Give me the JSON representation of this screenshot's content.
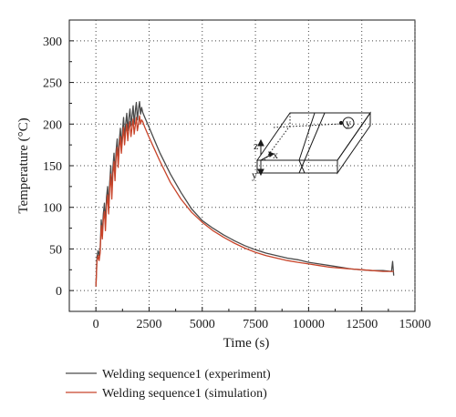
{
  "chart_data": {
    "type": "line",
    "xlabel": "Time (s)",
    "ylabel": "Temperature (°C)",
    "xlim": [
      -1250,
      15000
    ],
    "ylim": [
      -25,
      325
    ],
    "x_ticks": [
      0,
      2500,
      5000,
      7500,
      10000,
      12500,
      15000
    ],
    "x_tick_labels": [
      "0",
      "2500",
      "5000",
      "7500",
      "10000",
      "12500",
      "15000"
    ],
    "y_ticks": [
      0,
      50,
      100,
      150,
      200,
      250,
      300
    ],
    "y_tick_labels": [
      "0",
      "50",
      "100",
      "150",
      "200",
      "250",
      "300"
    ],
    "grid": true,
    "legend_position": "bottom-left, below plot",
    "series": [
      {
        "name": "Welding sequence1 (experiment)",
        "color": "#4a4a4a",
        "x": [
          0,
          50,
          100,
          150,
          200,
          250,
          300,
          350,
          400,
          450,
          500,
          550,
          600,
          650,
          700,
          750,
          800,
          850,
          900,
          950,
          1000,
          1050,
          1100,
          1150,
          1200,
          1250,
          1300,
          1350,
          1400,
          1450,
          1500,
          1550,
          1600,
          1650,
          1700,
          1750,
          1800,
          1850,
          1900,
          1950,
          2000,
          2050,
          2100,
          2150,
          2200,
          2300,
          2500,
          2750,
          3000,
          3500,
          4000,
          4500,
          5000,
          5500,
          6000,
          6500,
          7000,
          7500,
          8000,
          8500,
          9000,
          9500,
          10000,
          10500,
          11000,
          11500,
          12000,
          12500,
          13000,
          13500,
          13900,
          13950,
          14000
        ],
        "y": [
          5,
          40,
          48,
          42,
          50,
          85,
          70,
          92,
          105,
          80,
          112,
          125,
          100,
          130,
          150,
          118,
          148,
          165,
          140,
          168,
          182,
          155,
          180,
          195,
          172,
          192,
          208,
          182,
          200,
          213,
          192,
          207,
          218,
          198,
          210,
          222,
          200,
          215,
          226,
          205,
          218,
          227,
          212,
          220,
          214,
          208,
          196,
          181,
          166,
          140,
          118,
          98,
          84,
          75,
          67,
          60,
          54,
          49,
          45,
          42,
          39,
          37,
          34,
          32,
          30,
          28,
          26,
          25,
          24,
          24,
          23,
          35,
          18
        ]
      },
      {
        "name": "Welding sequence1 (simulation)",
        "color": "#c8442a",
        "x": [
          0,
          50,
          100,
          150,
          200,
          250,
          300,
          350,
          400,
          450,
          500,
          550,
          600,
          650,
          700,
          750,
          800,
          850,
          900,
          950,
          1000,
          1050,
          1100,
          1150,
          1200,
          1250,
          1300,
          1350,
          1400,
          1450,
          1500,
          1550,
          1600,
          1650,
          1700,
          1750,
          1800,
          1850,
          1900,
          1950,
          2000,
          2050,
          2100,
          2150,
          2200,
          2300,
          2500,
          2750,
          3000,
          3500,
          4000,
          4500,
          5000,
          5500,
          6000,
          6500,
          7000,
          7500,
          8000,
          8500,
          9000,
          9500,
          10000,
          10500,
          11000,
          11500,
          12000,
          12500,
          13000,
          13500,
          14000
        ],
        "y": [
          5,
          35,
          42,
          36,
          45,
          78,
          62,
          85,
          95,
          72,
          102,
          115,
          92,
          122,
          140,
          110,
          140,
          155,
          132,
          160,
          172,
          148,
          172,
          185,
          165,
          182,
          196,
          175,
          190,
          200,
          180,
          195,
          203,
          185,
          196,
          206,
          188,
          198,
          208,
          192,
          200,
          210,
          200,
          205,
          203,
          196,
          184,
          170,
          156,
          130,
          110,
          94,
          82,
          72,
          64,
          57,
          51,
          46,
          42,
          39,
          36,
          34,
          32,
          30,
          28,
          27,
          26,
          25,
          24,
          23,
          23
        ]
      }
    ]
  },
  "inset": {
    "labels": [
      "z",
      "x",
      "y"
    ],
    "marker": "y"
  }
}
